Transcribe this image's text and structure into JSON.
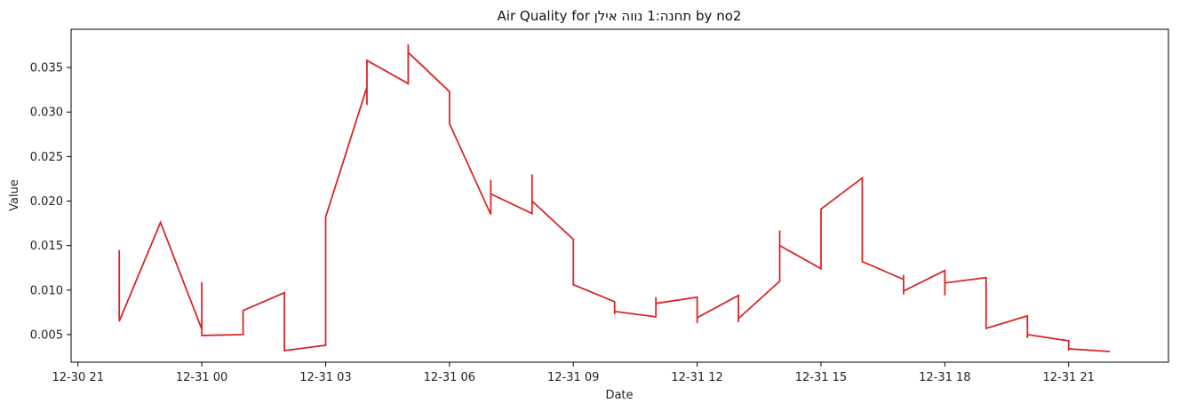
{
  "chart_data": {
    "type": "line",
    "title": "Air Quality for תחנה:1 נווה אילן by no2",
    "xlabel": "Date",
    "ylabel": "Value",
    "x_ticks": [
      {
        "at": "2023-12-30T21:00",
        "label": "12-30 21"
      },
      {
        "at": "2023-12-31T00:00",
        "label": "12-31 00"
      },
      {
        "at": "2023-12-31T03:00",
        "label": "12-31 03"
      },
      {
        "at": "2023-12-31T06:00",
        "label": "12-31 06"
      },
      {
        "at": "2023-12-31T09:00",
        "label": "12-31 09"
      },
      {
        "at": "2023-12-31T12:00",
        "label": "12-31 12"
      },
      {
        "at": "2023-12-31T15:00",
        "label": "12-31 15"
      },
      {
        "at": "2023-12-31T18:00",
        "label": "12-31 18"
      },
      {
        "at": "2023-12-31T21:00",
        "label": "12-31 21"
      }
    ],
    "y_ticks": [
      {
        "value": 0.005,
        "label": "0.005"
      },
      {
        "value": 0.01,
        "label": "0.010"
      },
      {
        "value": 0.015,
        "label": "0.015"
      },
      {
        "value": 0.02,
        "label": "0.020"
      },
      {
        "value": 0.025,
        "label": "0.025"
      },
      {
        "value": 0.03,
        "label": "0.030"
      },
      {
        "value": 0.035,
        "label": "0.035"
      }
    ],
    "xlim": [
      "2023-12-30T20:50",
      "2023-12-31T23:25"
    ],
    "ylim": [
      0.0019,
      0.0393
    ],
    "grid": false,
    "series": [
      {
        "color": "#d62728",
        "points": [
          [
            "2023-12-30T22:00",
            0.0145
          ],
          [
            "2023-12-30T22:00",
            0.0065
          ],
          [
            "2023-12-30T23:00",
            0.0176
          ],
          [
            "2023-12-31T00:00",
            0.0056
          ],
          [
            "2023-12-31T00:00",
            0.0109
          ],
          [
            "2023-12-31T00:00",
            0.0049
          ],
          [
            "2023-12-31T01:00",
            0.005
          ],
          [
            "2023-12-31T01:00",
            0.0077
          ],
          [
            "2023-12-31T02:00",
            0.0097
          ],
          [
            "2023-12-31T02:00",
            0.0032
          ],
          [
            "2023-12-31T03:00",
            0.0038
          ],
          [
            "2023-12-31T03:00",
            0.0182
          ],
          [
            "2023-12-31T04:00",
            0.0328
          ],
          [
            "2023-12-31T04:00",
            0.0308
          ],
          [
            "2023-12-31T04:00",
            0.0358
          ],
          [
            "2023-12-31T05:00",
            0.0332
          ],
          [
            "2023-12-31T05:00",
            0.0376
          ],
          [
            "2023-12-31T05:00",
            0.0367
          ],
          [
            "2023-12-31T06:00",
            0.0323
          ],
          [
            "2023-12-31T06:00",
            0.0287
          ],
          [
            "2023-12-31T07:00",
            0.0185
          ],
          [
            "2023-12-31T07:00",
            0.0224
          ],
          [
            "2023-12-31T07:00",
            0.0208
          ],
          [
            "2023-12-31T08:00",
            0.0186
          ],
          [
            "2023-12-31T08:00",
            0.023
          ],
          [
            "2023-12-31T08:00",
            0.02
          ],
          [
            "2023-12-31T09:00",
            0.0157
          ],
          [
            "2023-12-31T09:00",
            0.0106
          ],
          [
            "2023-12-31T10:00",
            0.0087
          ],
          [
            "2023-12-31T10:00",
            0.0073
          ],
          [
            "2023-12-31T10:00",
            0.0076
          ],
          [
            "2023-12-31T11:00",
            0.007
          ],
          [
            "2023-12-31T11:00",
            0.0092
          ],
          [
            "2023-12-31T11:00",
            0.0085
          ],
          [
            "2023-12-31T12:00",
            0.0092
          ],
          [
            "2023-12-31T12:00",
            0.0063
          ],
          [
            "2023-12-31T12:00",
            0.0069
          ],
          [
            "2023-12-31T13:00",
            0.0094
          ],
          [
            "2023-12-31T13:00",
            0.0064
          ],
          [
            "2023-12-31T13:00",
            0.0068
          ],
          [
            "2023-12-31T14:00",
            0.011
          ],
          [
            "2023-12-31T14:00",
            0.0167
          ],
          [
            "2023-12-31T14:00",
            0.015
          ],
          [
            "2023-12-31T15:00",
            0.0124
          ],
          [
            "2023-12-31T15:00",
            0.0175
          ],
          [
            "2023-12-31T15:00",
            0.0158
          ],
          [
            "2023-12-31T15:00",
            0.0191
          ],
          [
            "2023-12-31T16:00",
            0.0226
          ],
          [
            "2023-12-31T16:00",
            0.0154
          ],
          [
            "2023-12-31T16:00",
            0.0178
          ],
          [
            "2023-12-31T16:00",
            0.0132
          ],
          [
            "2023-12-31T17:00",
            0.0112
          ],
          [
            "2023-12-31T17:00",
            0.0117
          ],
          [
            "2023-12-31T17:00",
            0.0095
          ],
          [
            "2023-12-31T17:00",
            0.0099
          ],
          [
            "2023-12-31T18:00",
            0.0122
          ],
          [
            "2023-12-31T18:00",
            0.0094
          ],
          [
            "2023-12-31T18:00",
            0.0108
          ],
          [
            "2023-12-31T19:00",
            0.0114
          ],
          [
            "2023-12-31T19:00",
            0.0057
          ],
          [
            "2023-12-31T20:00",
            0.0071
          ],
          [
            "2023-12-31T20:00",
            0.0046
          ],
          [
            "2023-12-31T20:00",
            0.005
          ],
          [
            "2023-12-31T21:00",
            0.0043
          ],
          [
            "2023-12-31T21:00",
            0.0032
          ],
          [
            "2023-12-31T21:00",
            0.0034
          ],
          [
            "2023-12-31T22:00",
            0.0031
          ]
        ]
      }
    ]
  }
}
